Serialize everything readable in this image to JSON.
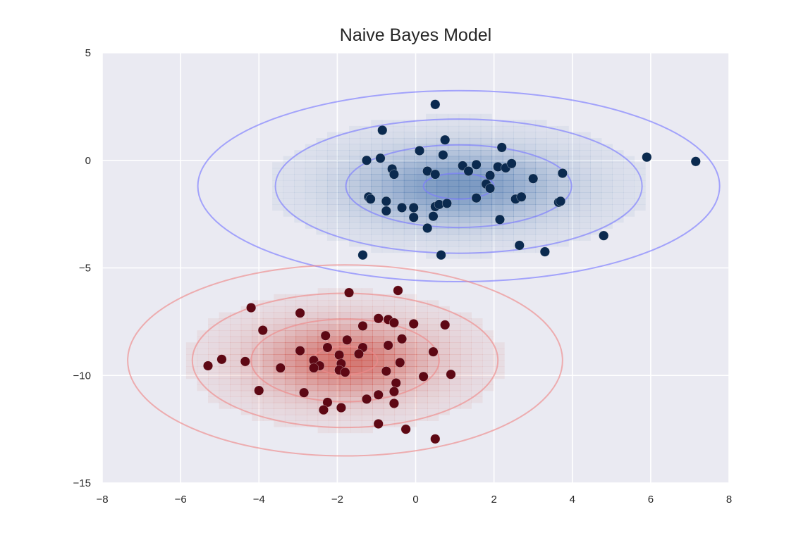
{
  "chart_data": {
    "type": "scatter",
    "title": "Naive Bayes Model",
    "xlabel": "",
    "ylabel": "",
    "xlim": [
      -8,
      8
    ],
    "ylim": [
      -15,
      5
    ],
    "xticks": [
      -8,
      -6,
      -4,
      -2,
      0,
      2,
      4,
      6,
      8
    ],
    "xtick_labels": [
      "−8",
      "−6",
      "−4",
      "−2",
      "0",
      "2",
      "4",
      "6",
      "8"
    ],
    "yticks": [
      5,
      0,
      -5,
      -10,
      -15
    ],
    "ytick_labels": [
      "5",
      "0",
      "−5",
      "−10",
      "−15"
    ],
    "grid": true,
    "background": "#eaeaf2",
    "gaussians": [
      {
        "class": "blue",
        "mean": [
          1.1,
          -1.2
        ],
        "std": [
          1.8,
          1.2
        ],
        "contour_color": "#7b7bff",
        "fill_color": "#3f6ea8",
        "contour_radii": [
          0.5,
          1.6,
          2.6,
          3.7
        ]
      },
      {
        "class": "red",
        "mean": [
          -1.8,
          -9.3
        ],
        "std": [
          1.5,
          1.2
        ],
        "contour_color": "#ee8a8a",
        "fill_color": "#c83a2e",
        "contour_radii": [
          0.55,
          1.6,
          2.6,
          3.7
        ]
      }
    ],
    "series": [
      {
        "color": "#0b2a4f",
        "points": [
          [
            0.5,
            2.6
          ],
          [
            -0.85,
            1.4
          ],
          [
            0.75,
            0.95
          ],
          [
            -0.9,
            0.1
          ],
          [
            -1.25,
            0.0
          ],
          [
            0.1,
            0.45
          ],
          [
            0.7,
            0.25
          ],
          [
            2.2,
            0.6
          ],
          [
            -0.6,
            -0.4
          ],
          [
            -0.55,
            -0.65
          ],
          [
            0.3,
            -0.5
          ],
          [
            0.5,
            -0.65
          ],
          [
            1.2,
            -0.25
          ],
          [
            1.35,
            -0.5
          ],
          [
            1.55,
            -0.2
          ],
          [
            1.9,
            -0.7
          ],
          [
            2.1,
            -0.3
          ],
          [
            2.3,
            -0.35
          ],
          [
            2.45,
            -0.15
          ],
          [
            3.0,
            -0.85
          ],
          [
            3.75,
            -0.6
          ],
          [
            5.9,
            0.15
          ],
          [
            7.15,
            -0.05
          ],
          [
            1.8,
            -1.1
          ],
          [
            1.9,
            -1.3
          ],
          [
            1.55,
            -1.75
          ],
          [
            2.55,
            -1.8
          ],
          [
            2.7,
            -1.7
          ],
          [
            3.65,
            -1.95
          ],
          [
            3.7,
            -1.9
          ],
          [
            -1.2,
            -1.7
          ],
          [
            -1.15,
            -1.8
          ],
          [
            -0.75,
            -1.9
          ],
          [
            -0.75,
            -2.35
          ],
          [
            -0.35,
            -2.2
          ],
          [
            -0.05,
            -2.2
          ],
          [
            0.5,
            -2.15
          ],
          [
            0.6,
            -2.05
          ],
          [
            0.8,
            -2.0
          ],
          [
            -0.05,
            -2.65
          ],
          [
            0.45,
            -2.6
          ],
          [
            0.3,
            -3.15
          ],
          [
            2.15,
            -2.75
          ],
          [
            2.65,
            -3.95
          ],
          [
            3.3,
            -4.25
          ],
          [
            4.8,
            -3.5
          ],
          [
            -1.35,
            -4.4
          ],
          [
            0.65,
            -4.4
          ]
        ]
      },
      {
        "color": "#5e0814",
        "points": [
          [
            -0.45,
            -6.05
          ],
          [
            -1.7,
            -6.15
          ],
          [
            -4.2,
            -6.85
          ],
          [
            -2.95,
            -7.1
          ],
          [
            -0.95,
            -7.35
          ],
          [
            -0.7,
            -7.4
          ],
          [
            -0.55,
            -7.55
          ],
          [
            -1.35,
            -7.7
          ],
          [
            -0.05,
            -7.6
          ],
          [
            0.75,
            -7.65
          ],
          [
            -3.9,
            -7.9
          ],
          [
            -2.3,
            -8.15
          ],
          [
            -1.75,
            -8.35
          ],
          [
            -0.35,
            -8.3
          ],
          [
            -2.25,
            -8.7
          ],
          [
            -0.7,
            -8.6
          ],
          [
            -1.35,
            -8.7
          ],
          [
            -2.95,
            -8.85
          ],
          [
            -1.45,
            -9.0
          ],
          [
            0.45,
            -8.9
          ],
          [
            -1.95,
            -9.05
          ],
          [
            -4.95,
            -9.25
          ],
          [
            -4.35,
            -9.35
          ],
          [
            -2.6,
            -9.3
          ],
          [
            -1.9,
            -9.45
          ],
          [
            -2.45,
            -9.55
          ],
          [
            -0.4,
            -9.4
          ],
          [
            -5.3,
            -9.55
          ],
          [
            -3.45,
            -9.65
          ],
          [
            -2.6,
            -9.65
          ],
          [
            -1.95,
            -9.75
          ],
          [
            -1.8,
            -9.85
          ],
          [
            -0.75,
            -9.8
          ],
          [
            0.9,
            -9.95
          ],
          [
            0.2,
            -10.05
          ],
          [
            -0.5,
            -10.35
          ],
          [
            -4.0,
            -10.7
          ],
          [
            -2.85,
            -10.8
          ],
          [
            -0.55,
            -10.75
          ],
          [
            -0.95,
            -10.9
          ],
          [
            -1.25,
            -11.1
          ],
          [
            -0.55,
            -11.3
          ],
          [
            -2.25,
            -11.25
          ],
          [
            -1.9,
            -11.5
          ],
          [
            -2.35,
            -11.6
          ],
          [
            -0.95,
            -12.25
          ],
          [
            -0.25,
            -12.5
          ],
          [
            0.5,
            -12.95
          ]
        ]
      }
    ]
  }
}
